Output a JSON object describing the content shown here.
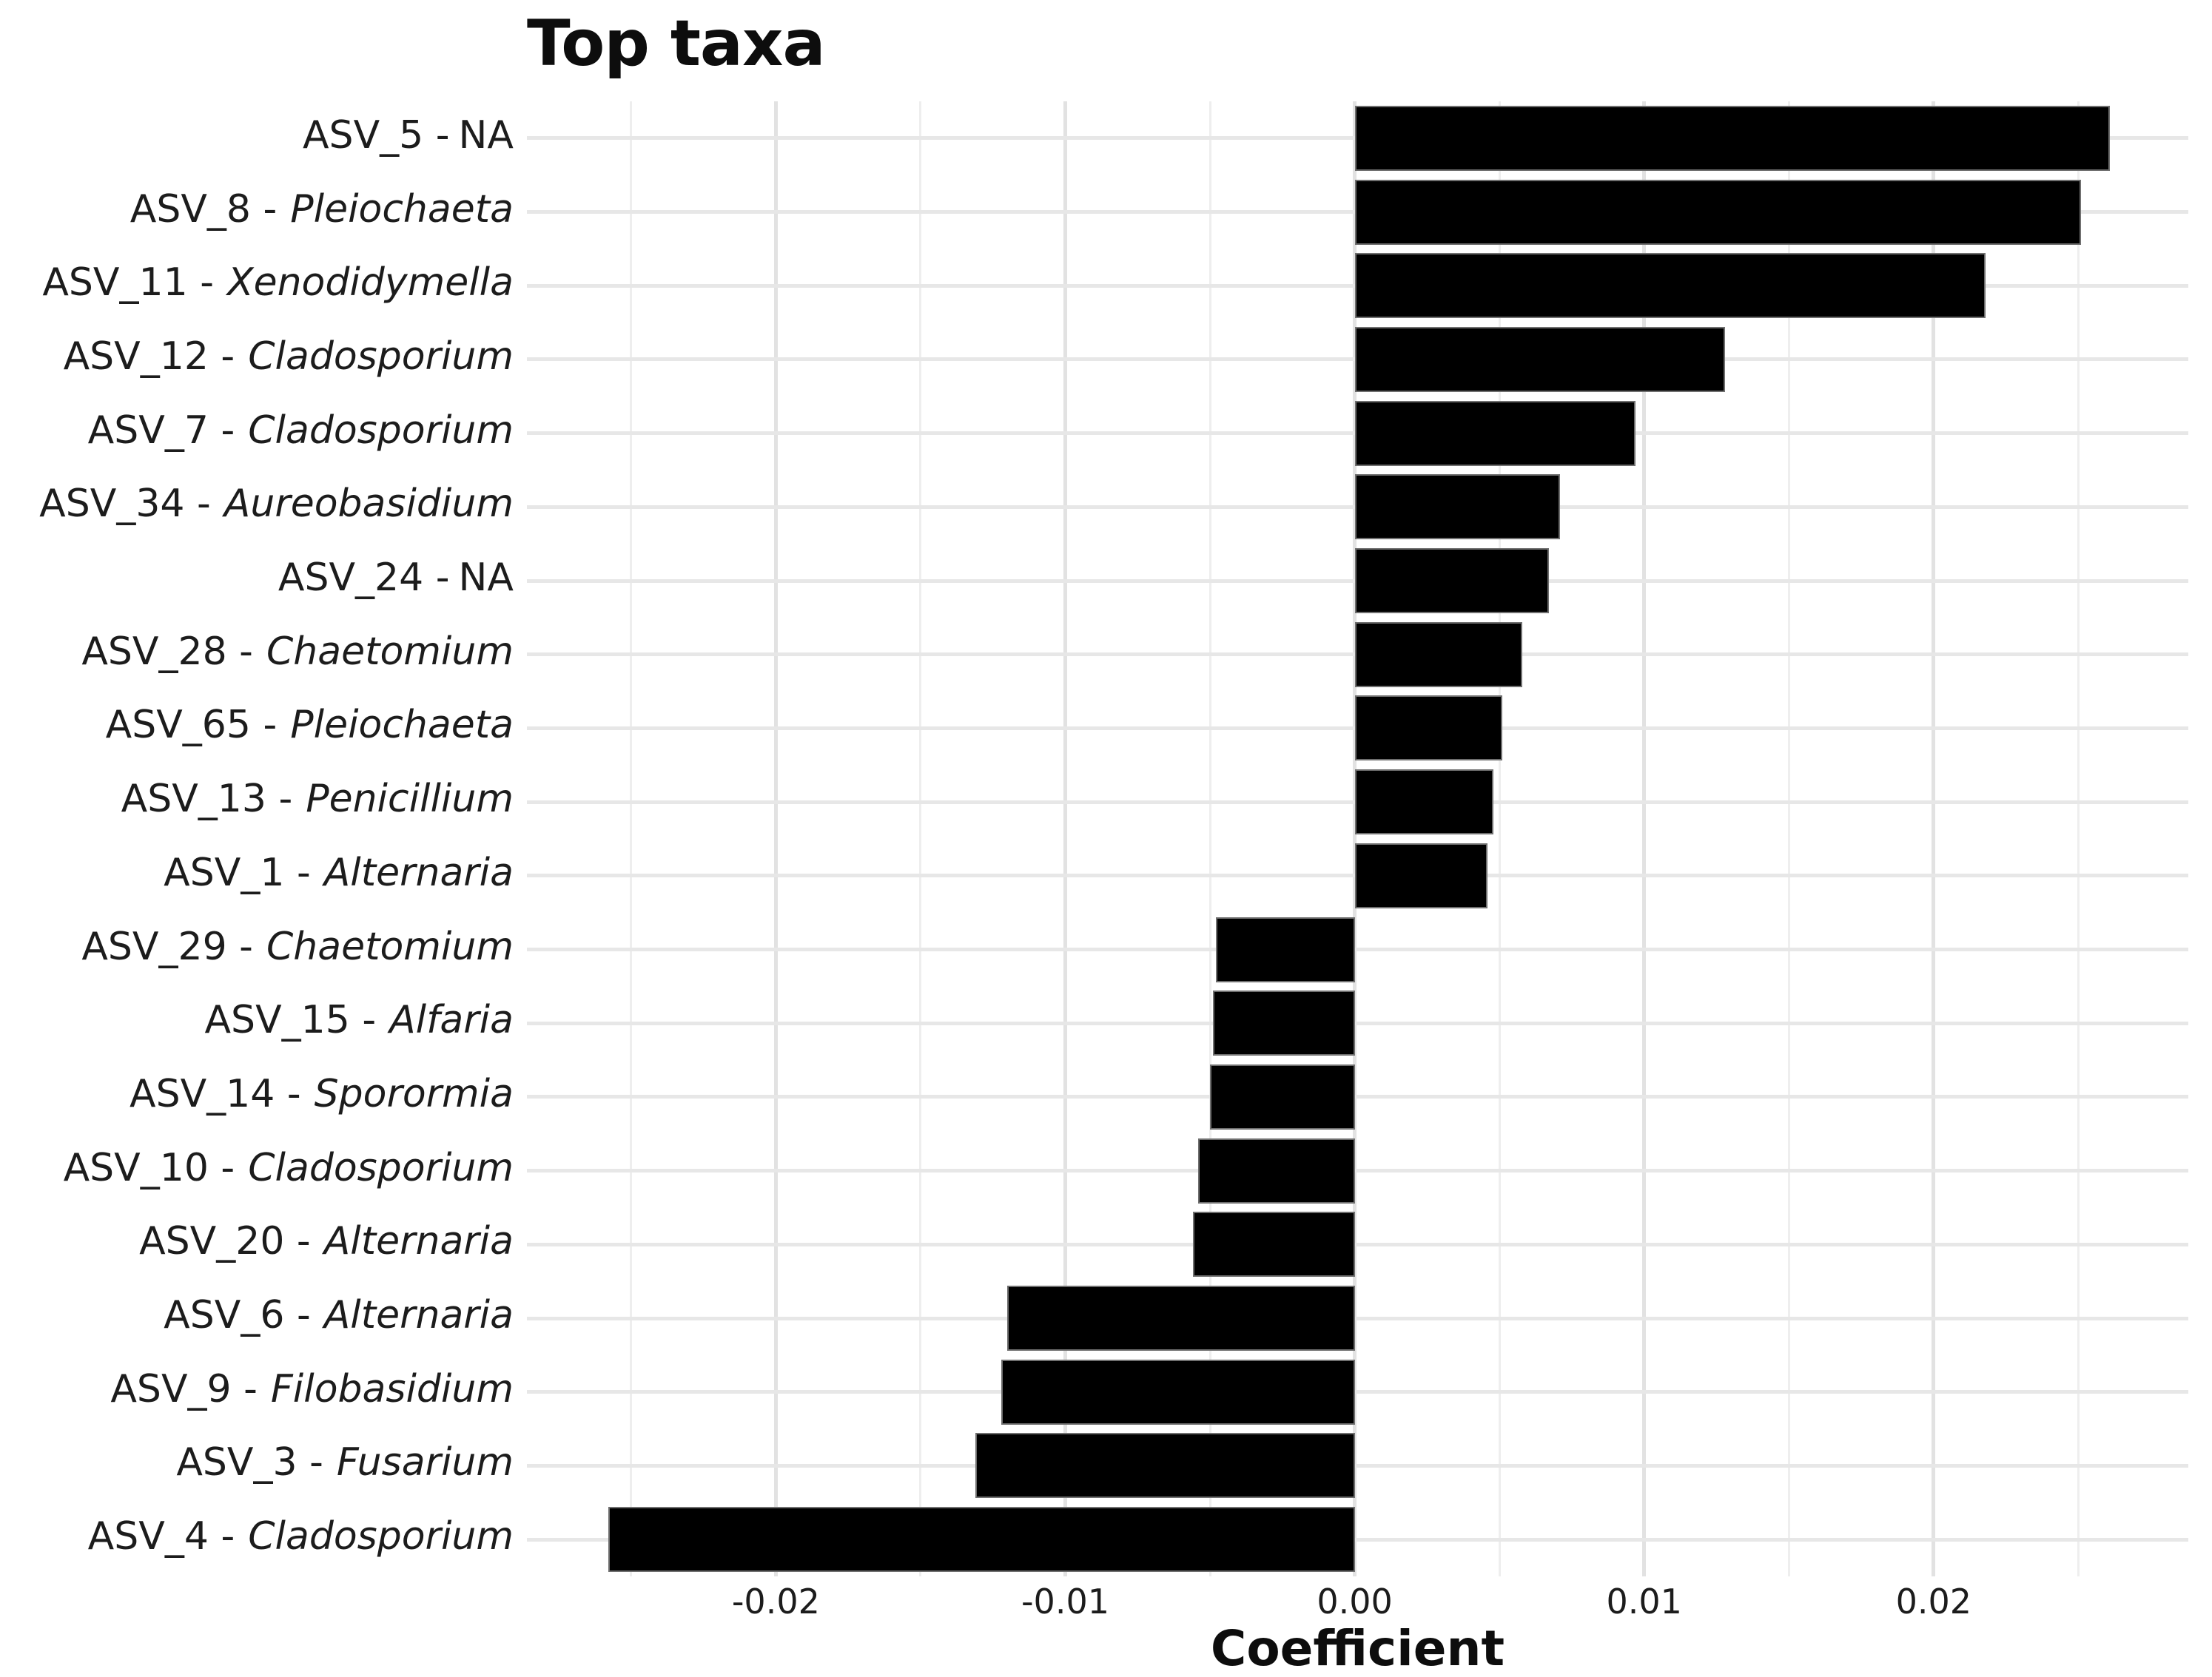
{
  "chart_data": {
    "type": "bar",
    "orientation": "horizontal",
    "title": "Top taxa",
    "xlabel": "Coefficient",
    "ylabel": "",
    "xlim": [
      -0.0286,
      0.0288
    ],
    "grid": true,
    "legend": false,
    "bar_color": "#000000",
    "bar_border_color": "#6f6f6f",
    "major_grid_color": "#e2e2e2",
    "minor_grid_color": "#eeeeee",
    "x_ticks": [
      {
        "value": -0.02,
        "label": "-0.02"
      },
      {
        "value": -0.01,
        "label": "-0.01"
      },
      {
        "value": 0.0,
        "label": "0.00"
      },
      {
        "value": 0.01,
        "label": "0.01"
      },
      {
        "value": 0.02,
        "label": "0.02"
      }
    ],
    "x_minor_gridlines": [
      -0.025,
      -0.015,
      -0.005,
      0.005,
      0.015,
      0.025
    ],
    "categories": [
      {
        "asv": "ASV_5",
        "genus": "NA",
        "genus_italic": false,
        "label": "ASV_5 - NA"
      },
      {
        "asv": "ASV_8",
        "genus": "Pleiochaeta",
        "genus_italic": true,
        "label": "ASV_8 - Pleiochaeta"
      },
      {
        "asv": "ASV_11",
        "genus": "Xenodidymella",
        "genus_italic": true,
        "label": "ASV_11 - Xenodidymella"
      },
      {
        "asv": "ASV_12",
        "genus": "Cladosporium",
        "genus_italic": true,
        "label": "ASV_12 - Cladosporium"
      },
      {
        "asv": "ASV_7",
        "genus": "Cladosporium",
        "genus_italic": true,
        "label": "ASV_7 - Cladosporium"
      },
      {
        "asv": "ASV_34",
        "genus": "Aureobasidium",
        "genus_italic": true,
        "label": "ASV_34 - Aureobasidium"
      },
      {
        "asv": "ASV_24",
        "genus": "NA",
        "genus_italic": false,
        "label": "ASV_24 - NA"
      },
      {
        "asv": "ASV_28",
        "genus": "Chaetomium",
        "genus_italic": true,
        "label": "ASV_28 - Chaetomium"
      },
      {
        "asv": "ASV_65",
        "genus": "Pleiochaeta",
        "genus_italic": true,
        "label": "ASV_65 - Pleiochaeta"
      },
      {
        "asv": "ASV_13",
        "genus": "Penicillium",
        "genus_italic": true,
        "label": "ASV_13 - Penicillium"
      },
      {
        "asv": "ASV_1",
        "genus": "Alternaria",
        "genus_italic": true,
        "label": "ASV_1 - Alternaria"
      },
      {
        "asv": "ASV_29",
        "genus": "Chaetomium",
        "genus_italic": true,
        "label": "ASV_29 - Chaetomium"
      },
      {
        "asv": "ASV_15",
        "genus": "Alfaria",
        "genus_italic": true,
        "label": "ASV_15 - Alfaria"
      },
      {
        "asv": "ASV_14",
        "genus": "Sporormia",
        "genus_italic": true,
        "label": "ASV_14 - Sporormia"
      },
      {
        "asv": "ASV_10",
        "genus": "Cladosporium",
        "genus_italic": true,
        "label": "ASV_10 - Cladosporium"
      },
      {
        "asv": "ASV_20",
        "genus": "Alternaria",
        "genus_italic": true,
        "label": "ASV_20 - Alternaria"
      },
      {
        "asv": "ASV_6",
        "genus": "Alternaria",
        "genus_italic": true,
        "label": "ASV_6 - Alternaria"
      },
      {
        "asv": "ASV_9",
        "genus": "Filobasidium",
        "genus_italic": true,
        "label": "ASV_9 - Filobasidium"
      },
      {
        "asv": "ASV_3",
        "genus": "Fusarium",
        "genus_italic": true,
        "label": "ASV_3 - Fusarium"
      },
      {
        "asv": "ASV_4",
        "genus": "Cladosporium",
        "genus_italic": true,
        "label": "ASV_4 - Cladosporium"
      }
    ],
    "values": [
      0.0261,
      0.0251,
      0.0218,
      0.0128,
      0.0097,
      0.0071,
      0.0067,
      0.0058,
      0.0051,
      0.0048,
      0.0046,
      -0.0048,
      -0.0049,
      -0.005,
      -0.0054,
      -0.0056,
      -0.012,
      -0.0122,
      -0.0131,
      -0.0258
    ]
  }
}
